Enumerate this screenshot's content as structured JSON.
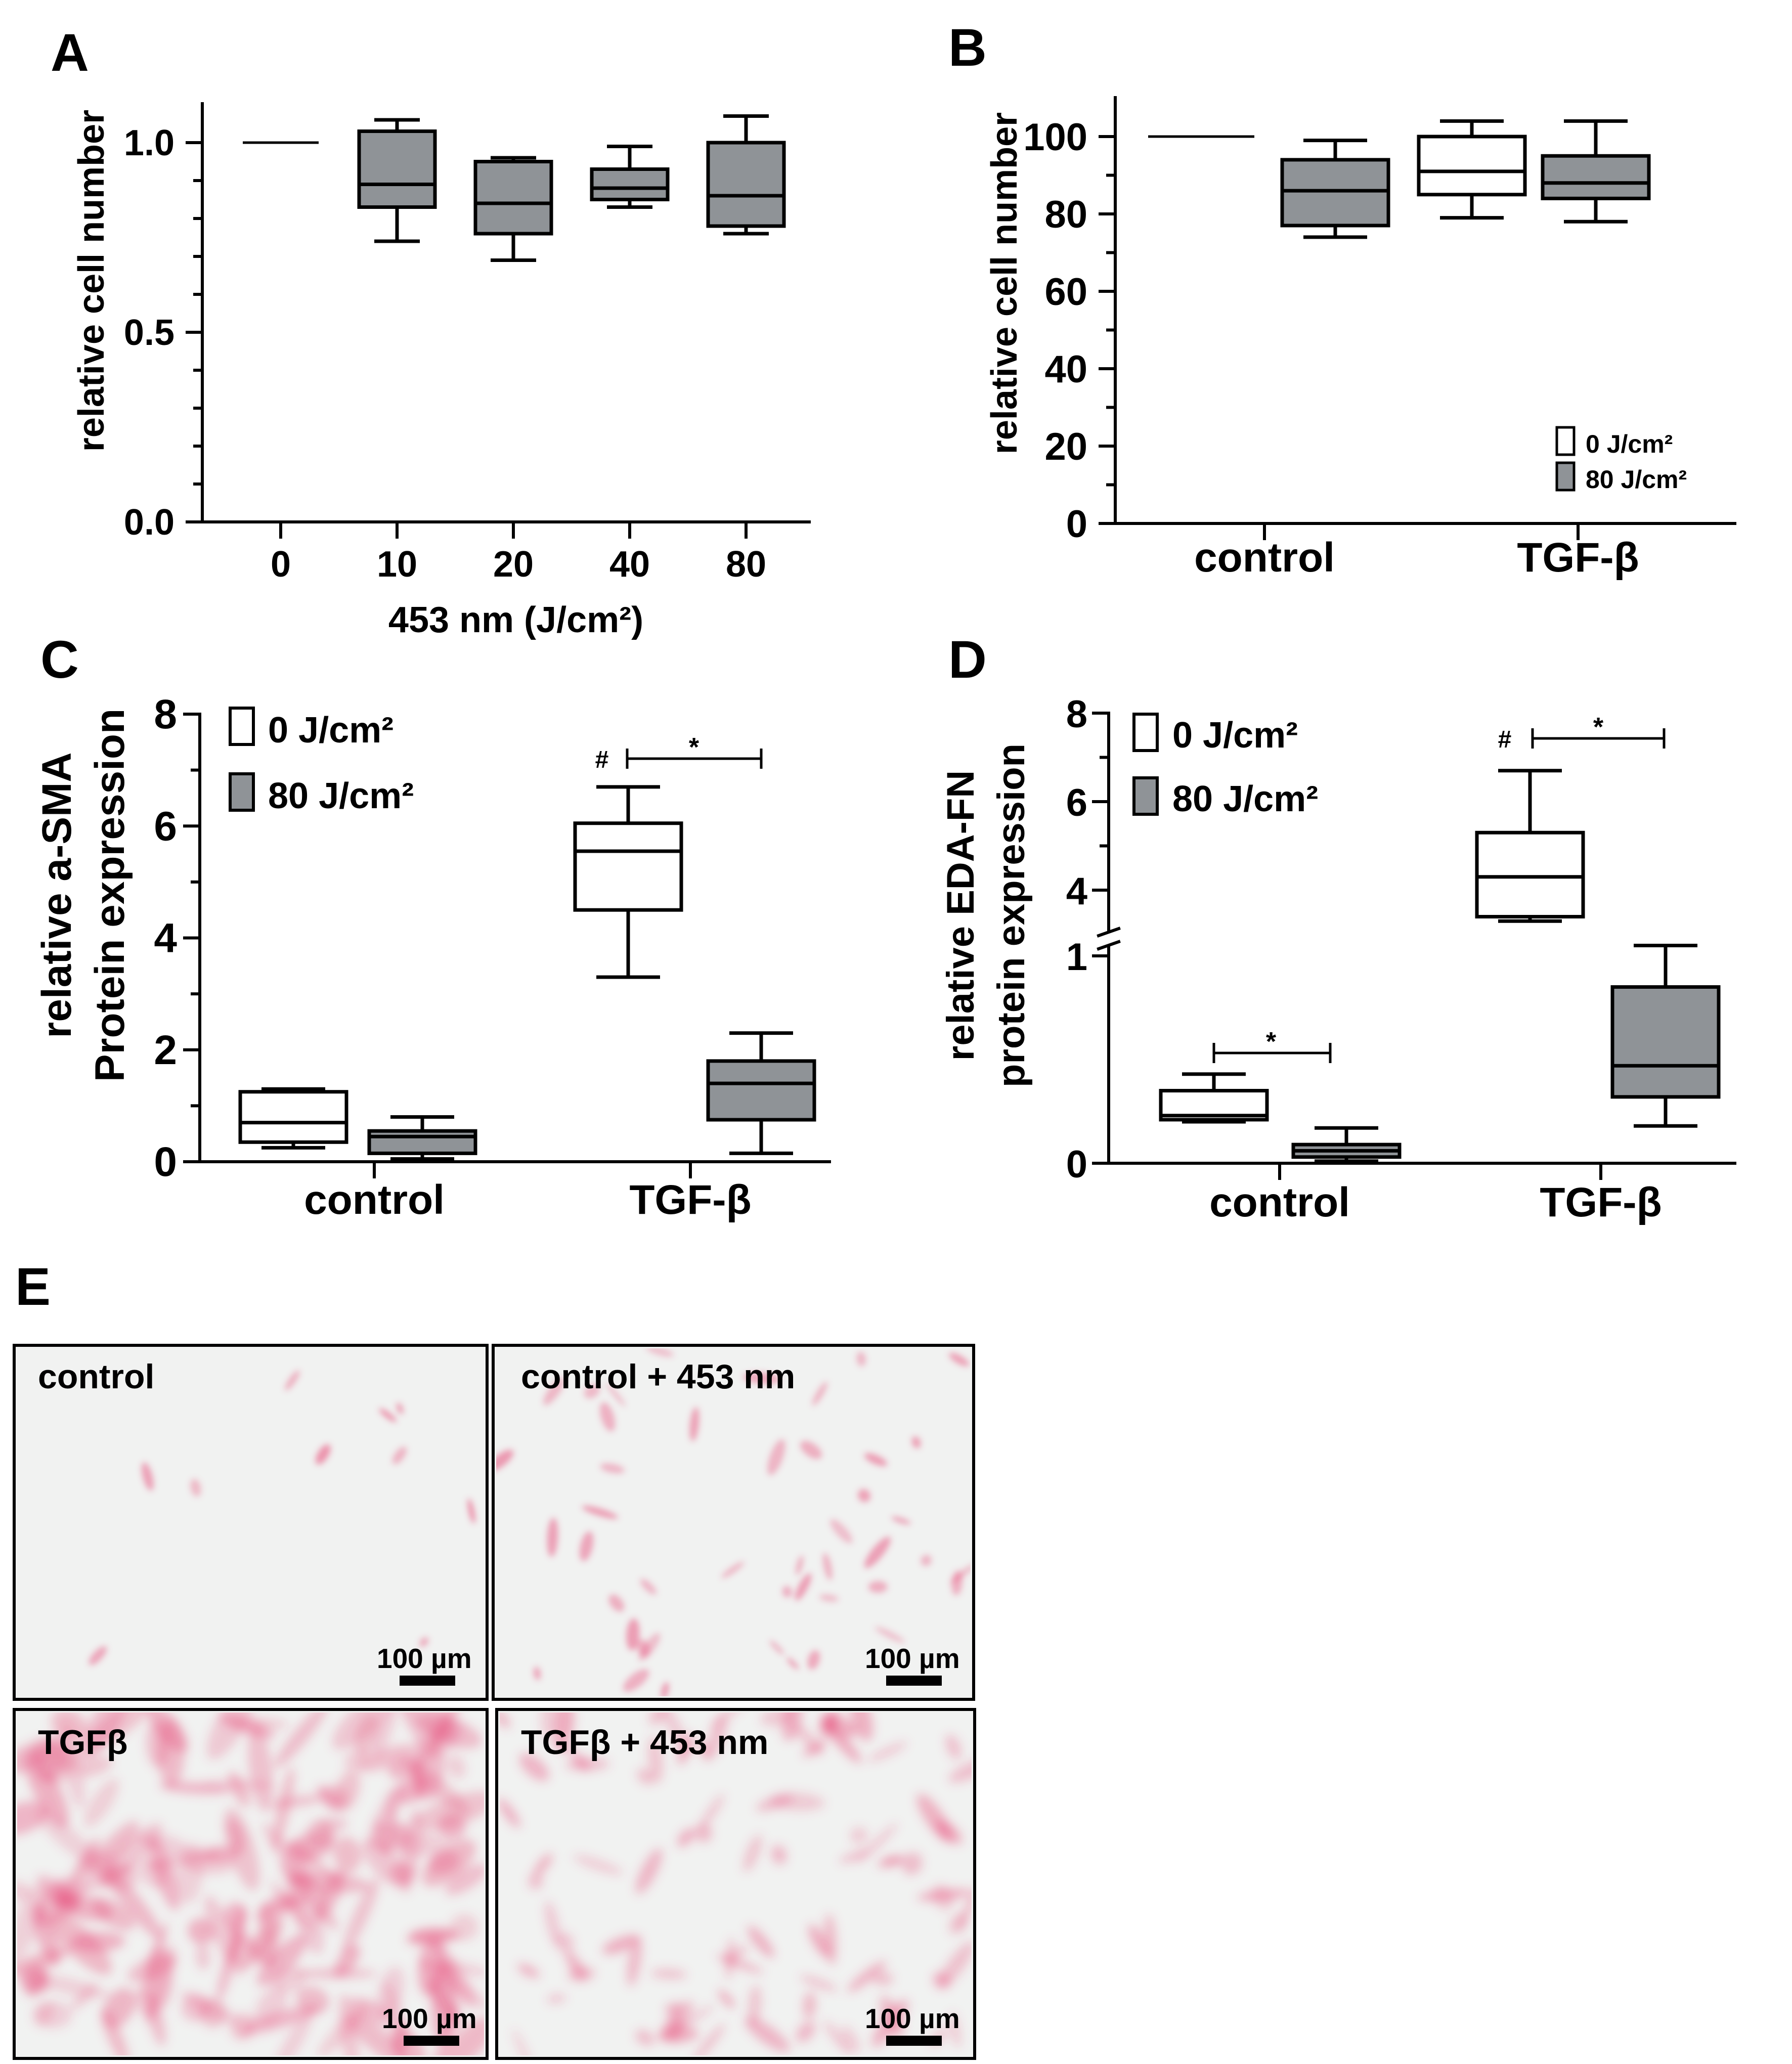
{
  "panel_labels": {
    "A": "A",
    "B": "B",
    "C": "C",
    "D": "D",
    "E": "E"
  },
  "chart_data": [
    {
      "panel": "A",
      "type": "box",
      "ylabel": "relative cell number",
      "xlabel": "453 nm (J/cm²)",
      "ylim": [
        0.0,
        1.1
      ],
      "yticks": [
        "0.0",
        "0.5",
        "1.0"
      ],
      "categories": [
        "0",
        "10",
        "20",
        "40",
        "80"
      ],
      "boxes": [
        {
          "category": "0",
          "min": 1.0,
          "q1": 1.0,
          "median": 1.0,
          "q3": 1.0,
          "max": 1.0,
          "fill": "none"
        },
        {
          "category": "10",
          "min": 0.74,
          "q1": 0.83,
          "median": 0.89,
          "q3": 1.03,
          "max": 1.06,
          "fill": "grey"
        },
        {
          "category": "20",
          "min": 0.69,
          "q1": 0.76,
          "median": 0.84,
          "q3": 0.95,
          "max": 0.96,
          "fill": "grey"
        },
        {
          "category": "40",
          "min": 0.83,
          "q1": 0.85,
          "median": 0.88,
          "q3": 0.93,
          "max": 0.99,
          "fill": "grey"
        },
        {
          "category": "80",
          "min": 0.76,
          "q1": 0.78,
          "median": 0.86,
          "q3": 1.0,
          "max": 1.07,
          "fill": "grey"
        }
      ]
    },
    {
      "panel": "B",
      "type": "box",
      "ylabel": "relative cell number",
      "ylim": [
        0,
        110
      ],
      "yticks": [
        "0",
        "20",
        "40",
        "60",
        "80",
        "100"
      ],
      "categories": [
        "control",
        "TGF-β"
      ],
      "legend": [
        "0 J/cm²",
        "80 J/cm²"
      ],
      "boxes": [
        {
          "category": "control",
          "series": "0 J/cm²",
          "min": 100,
          "q1": 100,
          "median": 100,
          "q3": 100,
          "max": 100
        },
        {
          "category": "control",
          "series": "80 J/cm²",
          "min": 74,
          "q1": 77,
          "median": 86,
          "q3": 94,
          "max": 99
        },
        {
          "category": "TGF-β",
          "series": "0 J/cm²",
          "min": 79,
          "q1": 85,
          "median": 91,
          "q3": 100,
          "max": 104
        },
        {
          "category": "TGF-β",
          "series": "80 J/cm²",
          "min": 78,
          "q1": 84,
          "median": 88,
          "q3": 95,
          "max": 104
        }
      ]
    },
    {
      "panel": "C",
      "type": "box",
      "ylabel": "relative a-SMA Protein expression",
      "ylabel_lines": [
        "relative a-SMA",
        "Protein expression"
      ],
      "ylim": [
        0,
        8
      ],
      "yticks": [
        "0",
        "2",
        "4",
        "6",
        "8"
      ],
      "categories": [
        "control",
        "TGF-β"
      ],
      "legend": [
        "0 J/cm²",
        "80 J/cm²"
      ],
      "annotations": {
        "hash": "#",
        "star": "*"
      },
      "boxes": [
        {
          "category": "control",
          "series": "0 J/cm²",
          "min": 0.25,
          "q1": 0.35,
          "median": 0.7,
          "q3": 1.25,
          "max": 1.3
        },
        {
          "category": "control",
          "series": "80 J/cm²",
          "min": 0.05,
          "q1": 0.15,
          "median": 0.45,
          "q3": 0.55,
          "max": 0.8
        },
        {
          "category": "TGF-β",
          "series": "0 J/cm²",
          "min": 3.3,
          "q1": 4.5,
          "median": 5.55,
          "q3": 6.05,
          "max": 6.7
        },
        {
          "category": "TGF-β",
          "series": "80 J/cm²",
          "min": 0.15,
          "q1": 0.75,
          "median": 1.4,
          "q3": 1.8,
          "max": 2.3
        }
      ]
    },
    {
      "panel": "D",
      "type": "box",
      "ylabel": "relative EDA-FN protein expression",
      "ylabel_lines": [
        "relative EDA-FN",
        "protein expression"
      ],
      "y_axis_break": true,
      "ylim_lower": [
        0,
        1
      ],
      "ylim_upper": [
        3,
        8
      ],
      "yticks": [
        "0",
        "1",
        "4",
        "6",
        "8"
      ],
      "categories": [
        "control",
        "TGF-β"
      ],
      "legend": [
        "0 J/cm²",
        "80 J/cm²"
      ],
      "annotations": {
        "hash": "#",
        "star_tgf": "*",
        "star_control": "*"
      },
      "boxes": [
        {
          "category": "control",
          "series": "0 J/cm²",
          "min": 0.2,
          "q1": 0.21,
          "median": 0.23,
          "q3": 0.35,
          "max": 0.43
        },
        {
          "category": "control",
          "series": "80 J/cm²",
          "min": 0.01,
          "q1": 0.03,
          "median": 0.06,
          "q3": 0.09,
          "max": 0.17
        },
        {
          "category": "TGF-β",
          "series": "0 J/cm²",
          "min": 3.3,
          "q1": 3.4,
          "median": 4.3,
          "q3": 5.3,
          "max": 6.7
        },
        {
          "category": "TGF-β",
          "series": "80 J/cm²",
          "min": 0.18,
          "q1": 0.32,
          "median": 0.47,
          "q3": 0.85,
          "max": 1.05
        }
      ]
    }
  ],
  "panel_E": {
    "images": [
      {
        "caption": "control",
        "scale_bar": "100 µm"
      },
      {
        "caption": "control + 453 nm",
        "scale_bar": "100 µm"
      },
      {
        "caption": "TGFβ",
        "scale_bar": "100 µm"
      },
      {
        "caption": "TGFβ + 453 nm",
        "scale_bar": "100 µm"
      }
    ]
  },
  "colors": {
    "grey_box": "#8f9397",
    "white_box": "#ffffff",
    "stain": "#e8507c",
    "image_bg": "#f1f2f1"
  }
}
